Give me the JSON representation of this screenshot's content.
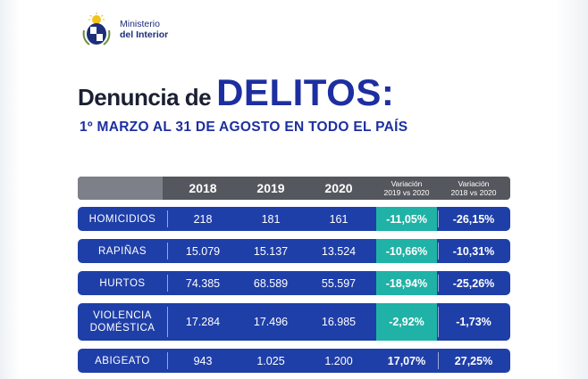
{
  "brand": {
    "line1": "Ministerio",
    "line2": "del Interior",
    "seal_icon": "coat-of-arms-seal"
  },
  "heading": {
    "prefix": "Denuncia de",
    "main": "DELITOS:",
    "subtitle": "1º MARZO AL 31 DE AGOSTO EN TODO EL PAÍS"
  },
  "colors": {
    "row_blue": "#1f3fa8",
    "teal": "#20b2a6",
    "header_gray": "#54575d",
    "title_blue": "#1d2fa0"
  },
  "table": {
    "headers": {
      "y2018": "2018",
      "y2019": "2019",
      "y2020": "2020",
      "var1_l1": "Variación",
      "var1_l2": "2019 vs 2020",
      "var2_l1": "Variación",
      "var2_l2": "2018 vs 2020"
    },
    "rows": [
      {
        "cat1": "HOMICIDIOS",
        "cat2": "",
        "v2018": "218",
        "v2019": "181",
        "v2020": "161",
        "var1": "-11,05%",
        "var2": "-26,15%"
      },
      {
        "cat1": "RAPIÑAS",
        "cat2": "",
        "v2018": "15.079",
        "v2019": "15.137",
        "v2020": "13.524",
        "var1": "-10,66%",
        "var2": "-10,31%"
      },
      {
        "cat1": "HURTOS",
        "cat2": "",
        "v2018": "74.385",
        "v2019": "68.589",
        "v2020": "55.597",
        "var1": "-18,94%",
        "var2": "-25,26%"
      },
      {
        "cat1": "VIOLENCIA",
        "cat2": "DOMÉSTICA",
        "v2018": "17.284",
        "v2019": "17.496",
        "v2020": "16.985",
        "var1": "-2,92%",
        "var2": "-1,73%"
      },
      {
        "cat1": "ABIGEATO",
        "cat2": "",
        "v2018": "943",
        "v2019": "1.025",
        "v2020": "1.200",
        "var1": "17,07%",
        "var2": "27,25%"
      }
    ]
  }
}
